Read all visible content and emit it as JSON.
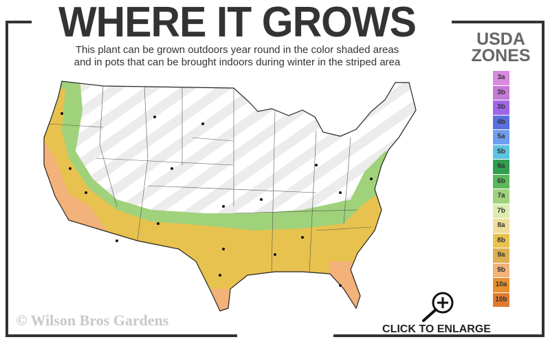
{
  "header": {
    "title": "WHERE IT GROWS",
    "subtitle_line1": "This plant can be grown outdoors year round in the color shaded areas",
    "subtitle_line2": "and in pots that can be brought indoors during winter in the striped area"
  },
  "legend": {
    "title_line1": "USDA",
    "title_line2": "ZONES",
    "zones": [
      {
        "label": "3a",
        "color": "#d889e0"
      },
      {
        "label": "3b",
        "color": "#c57ad8"
      },
      {
        "label": "3b",
        "color": "#a066e8"
      },
      {
        "label": "4b",
        "color": "#5a6fe0"
      },
      {
        "label": "5a",
        "color": "#6f9ef0"
      },
      {
        "label": "5b",
        "color": "#5cc4e0"
      },
      {
        "label": "6a",
        "color": "#2f9e4f"
      },
      {
        "label": "6b",
        "color": "#5cb85c"
      },
      {
        "label": "7a",
        "color": "#9fd27a"
      },
      {
        "label": "7b",
        "color": "#dcecb0"
      },
      {
        "label": "8a",
        "color": "#eedd9a"
      },
      {
        "label": "8b",
        "color": "#e8c24e"
      },
      {
        "label": "9a",
        "color": "#dcb050"
      },
      {
        "label": "9b",
        "color": "#f2b27a"
      },
      {
        "label": "10a",
        "color": "#e8902e"
      },
      {
        "label": "10b",
        "color": "#e07a30"
      }
    ]
  },
  "map": {
    "growing_zone_colors": [
      "#9fd27a",
      "#e8c24e",
      "#f2b27a"
    ],
    "striped_area_color": "#efefef"
  },
  "watermark": "© Wilson Bros Gardens",
  "enlarge": {
    "label": "CLICK TO ENLARGE",
    "icon": "magnifier-plus-icon"
  }
}
